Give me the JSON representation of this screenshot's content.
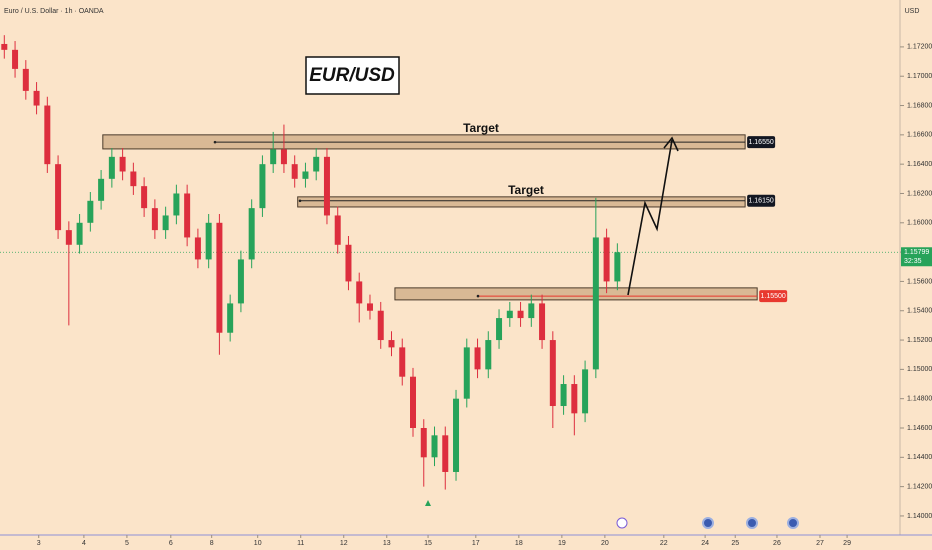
{
  "chart_data": {
    "type": "candlestick",
    "title": "Euro / U.S. Dollar · 1h · OANDA",
    "currency": "USD",
    "badge": "EUR/USD",
    "up_color": "#27a35a",
    "down_color": "#dd2e3e",
    "x": [
      -0.8,
      -0.55,
      -0.3,
      -0.05,
      0.2,
      0.45,
      0.7,
      0.95,
      1.2,
      1.45,
      1.7,
      1.95,
      2.2,
      2.45,
      2.7,
      2.95,
      3.2,
      3.45,
      3.7,
      3.95,
      4.2,
      4.45,
      4.7,
      4.95,
      5.2,
      5.45,
      5.7,
      5.95,
      6.2,
      6.45,
      6.7,
      6.95,
      7.2,
      7.45,
      7.7,
      7.95,
      8.2,
      8.45,
      8.7,
      8.95,
      9.2,
      9.45,
      9.7,
      9.95,
      10.2,
      10.45,
      10.7,
      10.95,
      11.2,
      11.45,
      11.7,
      11.95,
      12.2,
      12.45,
      12.7,
      12.95,
      13.2,
      13.45
    ],
    "open": [
      1.1722,
      1.1718,
      1.1705,
      1.169,
      1.168,
      1.164,
      1.1595,
      1.1585,
      1.16,
      1.1615,
      1.163,
      1.1645,
      1.1635,
      1.1625,
      1.161,
      1.1595,
      1.1605,
      1.162,
      1.159,
      1.1575,
      1.16,
      1.1525,
      1.1545,
      1.1575,
      1.161,
      1.164,
      1.165,
      1.164,
      1.163,
      1.1635,
      1.1645,
      1.1605,
      1.1585,
      1.156,
      1.1545,
      1.154,
      1.152,
      1.1515,
      1.1495,
      1.146,
      1.144,
      1.1455,
      1.143,
      1.148,
      1.1515,
      1.15,
      1.152,
      1.1535,
      1.154,
      1.1535,
      1.1545,
      1.152,
      1.1475,
      1.149,
      1.147,
      1.15,
      1.159,
      1.156
    ],
    "high": [
      1.1728,
      1.1724,
      1.1711,
      1.1696,
      1.1686,
      1.1646,
      1.1601,
      1.1606,
      1.1621,
      1.1636,
      1.1651,
      1.1651,
      1.1641,
      1.1631,
      1.1616,
      1.1611,
      1.1626,
      1.1626,
      1.1596,
      1.1606,
      1.1606,
      1.1551,
      1.1581,
      1.1616,
      1.1646,
      1.1662,
      1.1667,
      1.1646,
      1.1641,
      1.1651,
      1.1651,
      1.1611,
      1.1591,
      1.1566,
      1.1551,
      1.1546,
      1.1526,
      1.1521,
      1.1501,
      1.1466,
      1.1461,
      1.1461,
      1.1486,
      1.1521,
      1.1521,
      1.1526,
      1.1541,
      1.1546,
      1.1546,
      1.1551,
      1.1551,
      1.1526,
      1.1496,
      1.1496,
      1.1506,
      1.1617,
      1.1596,
      1.1586
    ],
    "low": [
      1.1712,
      1.1699,
      1.1684,
      1.1674,
      1.1634,
      1.1589,
      1.153,
      1.1579,
      1.1594,
      1.1609,
      1.1624,
      1.1629,
      1.1619,
      1.1604,
      1.1589,
      1.1589,
      1.1599,
      1.1584,
      1.1569,
      1.1569,
      1.151,
      1.1519,
      1.1539,
      1.1569,
      1.1604,
      1.1634,
      1.1634,
      1.1624,
      1.1624,
      1.1629,
      1.1599,
      1.1579,
      1.1554,
      1.1532,
      1.1534,
      1.1514,
      1.1509,
      1.1489,
      1.1454,
      1.142,
      1.1434,
      1.1418,
      1.1424,
      1.1474,
      1.1494,
      1.1494,
      1.1514,
      1.1529,
      1.1529,
      1.1529,
      1.1514,
      1.146,
      1.1469,
      1.1455,
      1.1464,
      1.1494,
      1.1552,
      1.1554
    ],
    "close": [
      1.1718,
      1.1705,
      1.169,
      1.168,
      1.164,
      1.1595,
      1.1585,
      1.16,
      1.1615,
      1.163,
      1.1645,
      1.1635,
      1.1625,
      1.161,
      1.1595,
      1.1605,
      1.162,
      1.159,
      1.1575,
      1.16,
      1.1525,
      1.1545,
      1.1575,
      1.161,
      1.164,
      1.165,
      1.164,
      1.163,
      1.1635,
      1.1645,
      1.1605,
      1.1585,
      1.156,
      1.1545,
      1.154,
      1.152,
      1.1515,
      1.1495,
      1.146,
      1.144,
      1.1455,
      1.143,
      1.148,
      1.1515,
      1.15,
      1.152,
      1.1535,
      1.154,
      1.1535,
      1.1545,
      1.152,
      1.1475,
      1.149,
      1.147,
      1.15,
      1.159,
      1.156,
      1.15799
    ],
    "xlim": [
      -0.9,
      20.02
    ],
    "ylim": [
      1.1387,
      1.1752
    ],
    "xticks": [
      {
        "value": 0,
        "label": "3"
      },
      {
        "value": 1.05,
        "label": "4"
      },
      {
        "value": 2.05,
        "label": "5"
      },
      {
        "value": 3.07,
        "label": "6"
      },
      {
        "value": 4.02,
        "label": "8"
      },
      {
        "value": 5.09,
        "label": "10"
      },
      {
        "value": 6.09,
        "label": "11"
      },
      {
        "value": 7.09,
        "label": "12"
      },
      {
        "value": 8.09,
        "label": "13"
      },
      {
        "value": 9.05,
        "label": "15"
      },
      {
        "value": 10.16,
        "label": "17"
      },
      {
        "value": 11.16,
        "label": "18"
      },
      {
        "value": 12.16,
        "label": "19"
      },
      {
        "value": 13.16,
        "label": "20"
      },
      {
        "value": 14.53,
        "label": "22"
      },
      {
        "value": 15.49,
        "label": "24"
      },
      {
        "value": 16.19,
        "label": "25"
      },
      {
        "value": 17.16,
        "label": "26"
      },
      {
        "value": 18.16,
        "label": "27"
      },
      {
        "value": 18.79,
        "label": "29"
      }
    ],
    "yticks": [
      {
        "value": 1.172,
        "label": "1.17200"
      },
      {
        "value": 1.17,
        "label": "1.17000"
      },
      {
        "value": 1.168,
        "label": "1.16800"
      },
      {
        "value": 1.166,
        "label": "1.16600"
      },
      {
        "value": 1.164,
        "label": "1.16400"
      },
      {
        "value": 1.162,
        "label": "1.16200"
      },
      {
        "value": 1.16,
        "label": "1.16000"
      },
      {
        "value": 1.158,
        "label": "1.15800"
      },
      {
        "value": 1.156,
        "label": "1.15600"
      },
      {
        "value": 1.154,
        "label": "1.15400"
      },
      {
        "value": 1.152,
        "label": "1.15200"
      },
      {
        "value": 1.15,
        "label": "1.15000"
      },
      {
        "value": 1.148,
        "label": "1.14800"
      },
      {
        "value": 1.146,
        "label": "1.14600"
      },
      {
        "value": 1.144,
        "label": "1.14400"
      },
      {
        "value": 1.142,
        "label": "1.14200"
      },
      {
        "value": 1.14,
        "label": "1.14000"
      }
    ],
    "zones": [
      {
        "top": 1.166,
        "bottom": 1.16504,
        "x_start": 1.49,
        "x_end": 16.42,
        "level": 1.1655,
        "level_label": "1.16550",
        "annotation": "Target",
        "label_color": "#131722"
      },
      {
        "top": 1.16177,
        "bottom": 1.16108,
        "x_start": 6.02,
        "x_end": 16.42,
        "level": 1.1615,
        "level_label": "1.16150",
        "annotation": "Target",
        "label_color": "#131722"
      },
      {
        "top": 1.15556,
        "bottom": 1.15474,
        "x_start": 8.28,
        "x_end": 16.7,
        "level": 1.155,
        "level_label": "1.15500",
        "label_color": "#e8392f"
      }
    ],
    "last_price": 1.15799,
    "countdown": "32:35"
  }
}
